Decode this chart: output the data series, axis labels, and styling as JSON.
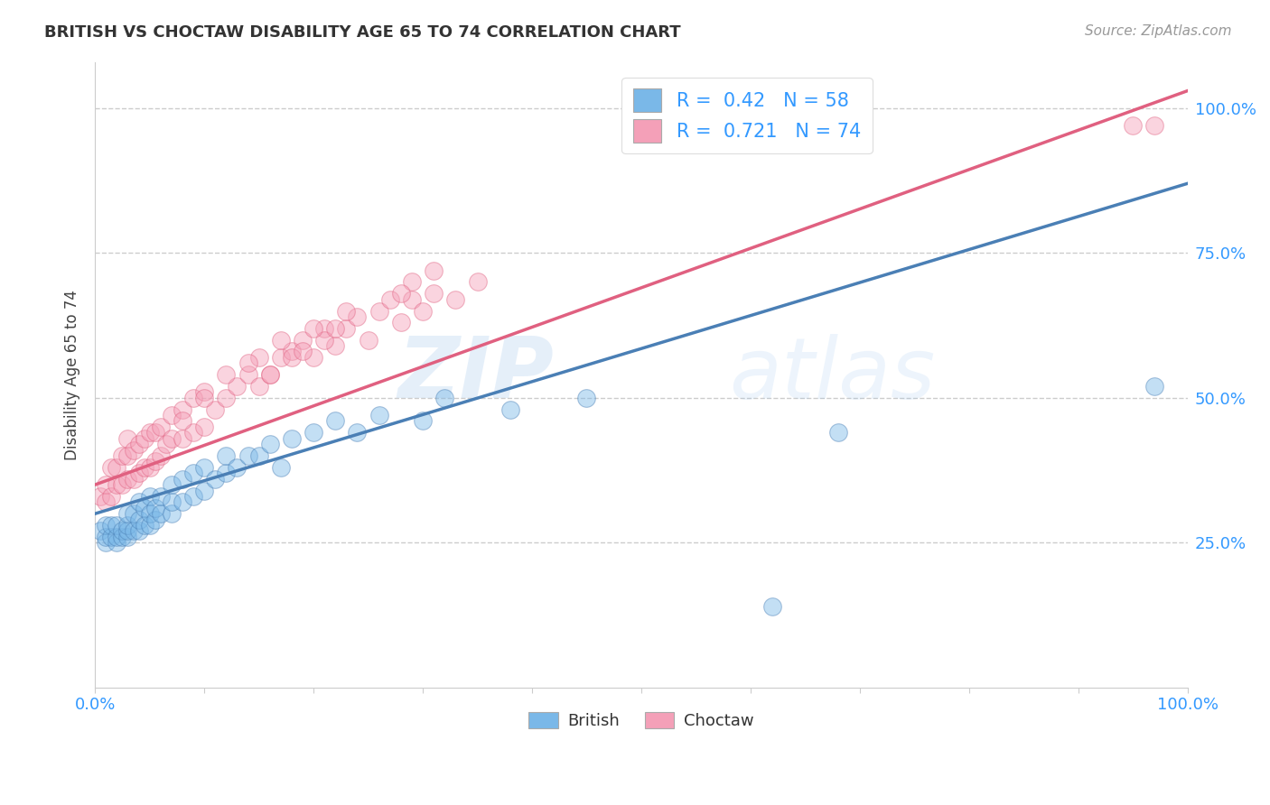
{
  "title": "BRITISH VS CHOCTAW DISABILITY AGE 65 TO 74 CORRELATION CHART",
  "source_text": "Source: ZipAtlas.com",
  "ylabel": "Disability Age 65 to 74",
  "xlim": [
    0.0,
    1.0
  ],
  "ylim": [
    0.0,
    1.08
  ],
  "x_ticks": [
    0.0,
    0.1,
    0.2,
    0.3,
    0.4,
    0.5,
    0.6,
    0.7,
    0.8,
    0.9,
    1.0
  ],
  "y_ticks": [
    0.25,
    0.5,
    0.75,
    1.0
  ],
  "british_color": "#7ab8e8",
  "choctaw_color": "#f4a0b8",
  "british_line_color": "#4a7fb5",
  "choctaw_line_color": "#e06080",
  "R_british": 0.42,
  "N_british": 58,
  "R_choctaw": 0.721,
  "N_choctaw": 74,
  "british_x": [
    0.005,
    0.01,
    0.01,
    0.01,
    0.015,
    0.015,
    0.02,
    0.02,
    0.02,
    0.025,
    0.025,
    0.03,
    0.03,
    0.03,
    0.03,
    0.035,
    0.035,
    0.04,
    0.04,
    0.04,
    0.045,
    0.045,
    0.05,
    0.05,
    0.05,
    0.055,
    0.055,
    0.06,
    0.06,
    0.07,
    0.07,
    0.07,
    0.08,
    0.08,
    0.09,
    0.09,
    0.1,
    0.1,
    0.11,
    0.12,
    0.12,
    0.13,
    0.14,
    0.15,
    0.16,
    0.17,
    0.18,
    0.2,
    0.22,
    0.24,
    0.26,
    0.3,
    0.32,
    0.38,
    0.45,
    0.62,
    0.68,
    0.97
  ],
  "british_y": [
    0.27,
    0.25,
    0.26,
    0.28,
    0.26,
    0.28,
    0.25,
    0.26,
    0.28,
    0.26,
    0.27,
    0.26,
    0.27,
    0.28,
    0.3,
    0.27,
    0.3,
    0.27,
    0.29,
    0.32,
    0.28,
    0.31,
    0.28,
    0.3,
    0.33,
    0.29,
    0.31,
    0.3,
    0.33,
    0.3,
    0.32,
    0.35,
    0.32,
    0.36,
    0.33,
    0.37,
    0.34,
    0.38,
    0.36,
    0.37,
    0.4,
    0.38,
    0.4,
    0.4,
    0.42,
    0.38,
    0.43,
    0.44,
    0.46,
    0.44,
    0.47,
    0.46,
    0.5,
    0.48,
    0.5,
    0.14,
    0.44,
    0.52
  ],
  "choctaw_x": [
    0.005,
    0.01,
    0.01,
    0.015,
    0.015,
    0.02,
    0.02,
    0.025,
    0.025,
    0.03,
    0.03,
    0.03,
    0.035,
    0.035,
    0.04,
    0.04,
    0.045,
    0.045,
    0.05,
    0.05,
    0.055,
    0.055,
    0.06,
    0.06,
    0.065,
    0.07,
    0.07,
    0.08,
    0.08,
    0.09,
    0.09,
    0.1,
    0.1,
    0.11,
    0.12,
    0.13,
    0.14,
    0.15,
    0.15,
    0.16,
    0.17,
    0.18,
    0.19,
    0.2,
    0.21,
    0.22,
    0.23,
    0.25,
    0.26,
    0.28,
    0.29,
    0.3,
    0.31,
    0.33,
    0.35,
    0.21,
    0.22,
    0.16,
    0.18,
    0.24,
    0.27,
    0.29,
    0.08,
    0.1,
    0.12,
    0.14,
    0.17,
    0.2,
    0.23,
    0.19,
    0.28,
    0.31,
    0.95,
    0.97
  ],
  "choctaw_y": [
    0.33,
    0.32,
    0.35,
    0.33,
    0.38,
    0.35,
    0.38,
    0.35,
    0.4,
    0.36,
    0.4,
    0.43,
    0.36,
    0.41,
    0.37,
    0.42,
    0.38,
    0.43,
    0.38,
    0.44,
    0.39,
    0.44,
    0.4,
    0.45,
    0.42,
    0.43,
    0.47,
    0.43,
    0.48,
    0.44,
    0.5,
    0.45,
    0.51,
    0.48,
    0.5,
    0.52,
    0.54,
    0.52,
    0.57,
    0.54,
    0.57,
    0.58,
    0.6,
    0.57,
    0.62,
    0.59,
    0.62,
    0.6,
    0.65,
    0.63,
    0.67,
    0.65,
    0.68,
    0.67,
    0.7,
    0.6,
    0.62,
    0.54,
    0.57,
    0.64,
    0.67,
    0.7,
    0.46,
    0.5,
    0.54,
    0.56,
    0.6,
    0.62,
    0.65,
    0.58,
    0.68,
    0.72,
    0.97,
    0.97
  ],
  "british_line_x0": 0.0,
  "british_line_y0": 0.3,
  "british_line_x1": 1.0,
  "british_line_y1": 0.87,
  "choctaw_line_x0": 0.0,
  "choctaw_line_y0": 0.35,
  "choctaw_line_x1": 1.0,
  "choctaw_line_y1": 1.03,
  "watermark_zip": "ZIP",
  "watermark_atlas": "atlas",
  "background_color": "#ffffff",
  "grid_color": "#cccccc",
  "tick_color": "#3399ff",
  "title_color": "#333333",
  "label_color": "#444444",
  "source_color": "#999999",
  "legend_text_color": "#3399ff"
}
